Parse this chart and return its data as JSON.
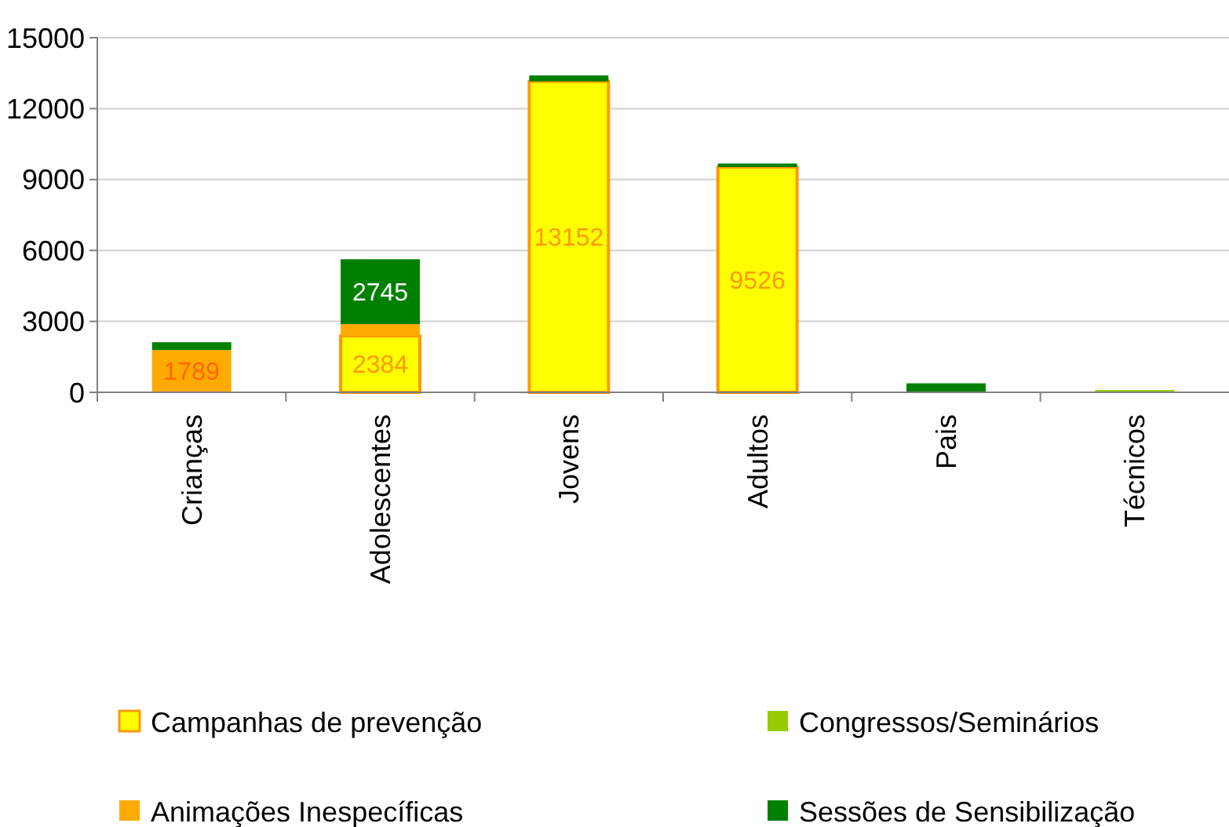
{
  "chart_data": {
    "type": "bar",
    "stacked": true,
    "categories": [
      "Crianças",
      "Adolescentes",
      "Jovens",
      "Adultos",
      "Pais",
      "Técnicos"
    ],
    "series": [
      {
        "name": "Campanhas de prevenção",
        "color": "#ffff00",
        "values": [
          0,
          2384,
          13152,
          9526,
          0,
          0
        ],
        "value_labels": [
          null,
          "2384",
          "13152",
          "9526",
          null,
          null
        ]
      },
      {
        "name": "Animações Inespecíficas",
        "color": "#ffaa00",
        "values": [
          1789,
          500,
          0,
          0,
          0,
          0
        ],
        "value_labels": [
          "1789",
          null,
          null,
          null,
          null,
          null
        ]
      },
      {
        "name": "Congressos/Seminários",
        "color": "#99cc00",
        "values": [
          0,
          0,
          0,
          0,
          0,
          100
        ]
      },
      {
        "name": "Sessões de Sensibilização",
        "color": "#008000",
        "values": [
          330,
          2745,
          250,
          150,
          380,
          0
        ],
        "value_labels": [
          null,
          "2745",
          null,
          null,
          null,
          null
        ]
      }
    ],
    "ylim": [
      0,
      15000
    ],
    "yticks": [
      0,
      3000,
      6000,
      9000,
      12000,
      15000
    ],
    "grid": "y",
    "legend": "bottom"
  }
}
